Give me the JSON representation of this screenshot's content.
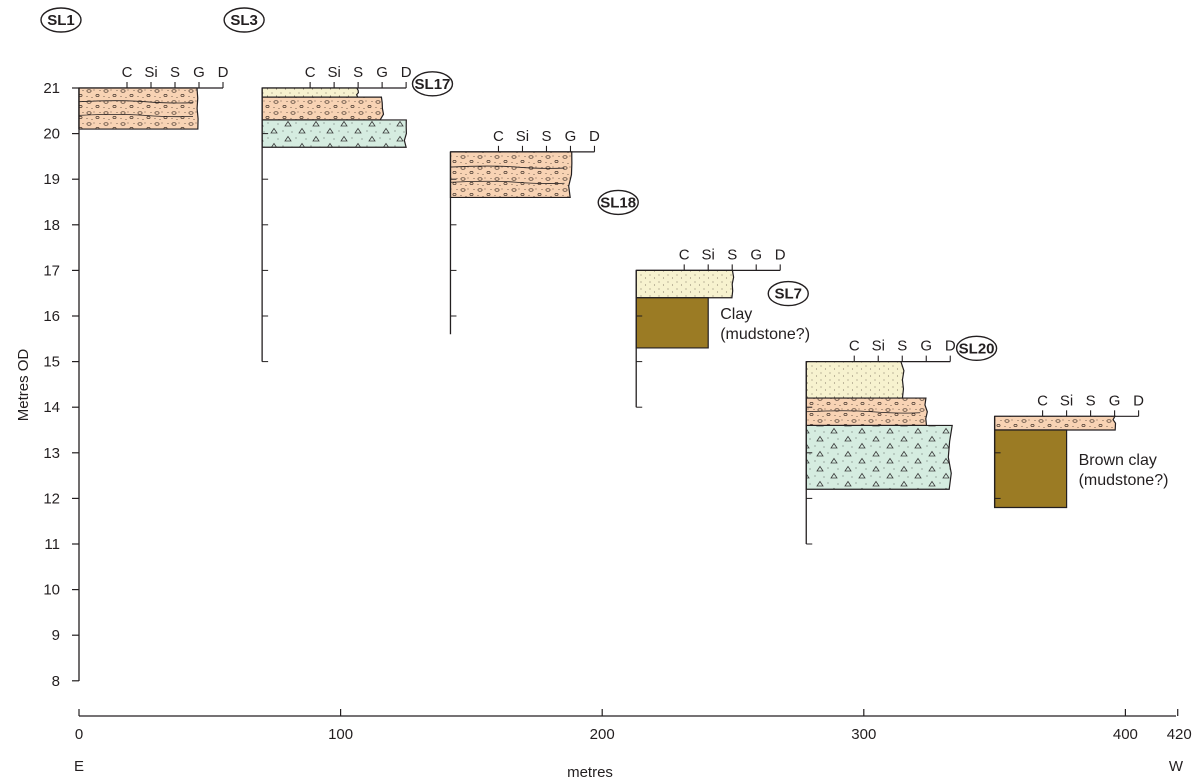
{
  "figure": {
    "y_axis_label": "Metres OD",
    "x_axis_label": "metres",
    "x_left_label": "E",
    "x_right_label": "W",
    "y_ticks": [
      8,
      9,
      10,
      11,
      12,
      13,
      14,
      15,
      16,
      17,
      18,
      19,
      20,
      21
    ],
    "x_ticks": [
      0,
      100,
      200,
      300,
      400,
      420
    ],
    "grain_scale_labels": [
      "C",
      "Si",
      "S",
      "G",
      "D"
    ],
    "colors": {
      "gravelly_sand": "#f8d3b4",
      "sand": "#f7f2cf",
      "diamicton": "#d5ece0",
      "clay": "#9b7b24",
      "line": "#231f20"
    }
  },
  "boreholes": [
    {
      "name": "SL1",
      "x_m": 0,
      "top_m": 21,
      "base_m": 20.1,
      "units": [
        {
          "type": "gravelly_sand",
          "top_m": 21,
          "base_m": 20.1,
          "grain": "G"
        }
      ]
    },
    {
      "name": "SL3",
      "x_m": 70,
      "top_m": 21,
      "base_m": 15,
      "units": [
        {
          "type": "sand",
          "top_m": 21,
          "base_m": 20.8,
          "grain": "S"
        },
        {
          "type": "gravelly_sand",
          "top_m": 20.8,
          "base_m": 20.3,
          "grain": "G"
        },
        {
          "type": "diamicton",
          "top_m": 20.3,
          "base_m": 19.7,
          "grain": "D"
        }
      ]
    },
    {
      "name": "SL17",
      "x_m": 142,
      "top_m": 19.6,
      "base_m": 15.6,
      "units": [
        {
          "type": "gravelly_sand",
          "top_m": 19.6,
          "base_m": 18.6,
          "grain": "G"
        }
      ]
    },
    {
      "name": "SL18",
      "x_m": 213,
      "top_m": 17,
      "base_m": 14,
      "units": [
        {
          "type": "sand",
          "top_m": 17,
          "base_m": 16.4,
          "grain": "S"
        },
        {
          "type": "clay",
          "top_m": 16.4,
          "base_m": 15.3,
          "grain": "Si"
        }
      ],
      "note_lines": [
        "Clay",
        "(mudstone?)"
      ]
    },
    {
      "name": "SL7",
      "x_m": 278,
      "top_m": 15,
      "base_m": 11,
      "units": [
        {
          "type": "sand",
          "top_m": 15,
          "base_m": 14.2,
          "grain": "S"
        },
        {
          "type": "gravelly_sand",
          "top_m": 14.2,
          "base_m": 13.6,
          "grain": "G"
        },
        {
          "type": "diamicton",
          "top_m": 13.6,
          "base_m": 12.2,
          "grain": "D"
        }
      ]
    },
    {
      "name": "SL20",
      "x_m": 350,
      "top_m": 13.8,
      "base_m": 11.8,
      "units": [
        {
          "type": "gravelly_sand",
          "top_m": 13.8,
          "base_m": 13.5,
          "grain": "G"
        },
        {
          "type": "clay",
          "top_m": 13.5,
          "base_m": 11.8,
          "grain": "Si"
        }
      ],
      "note_lines": [
        "Brown clay",
        "(mudstone?)"
      ]
    }
  ]
}
